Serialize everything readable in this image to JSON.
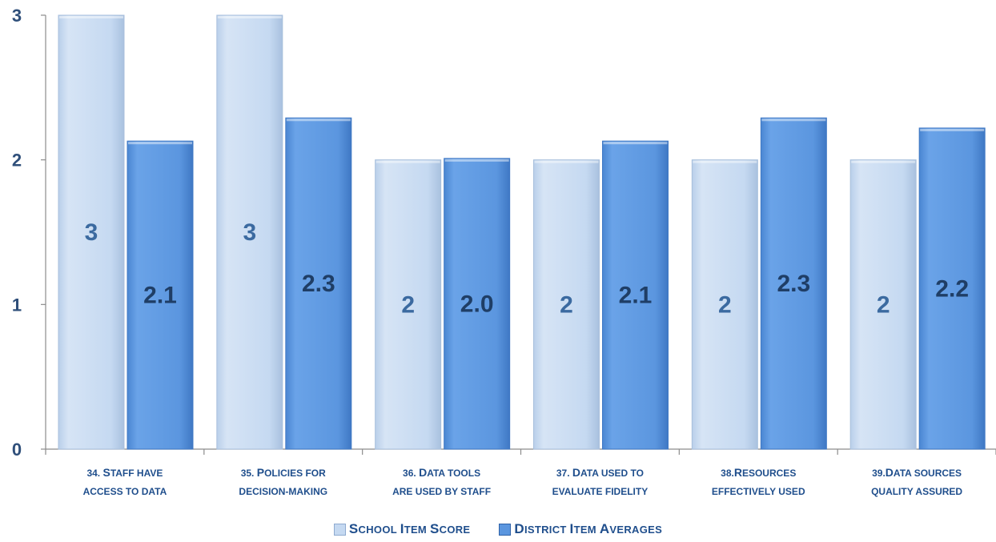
{
  "chart_data": {
    "type": "bar",
    "categories": [
      [
        "34. Staff have",
        "access to data"
      ],
      [
        "35. Policies for",
        "decision-making"
      ],
      [
        "36. Data tools",
        "are used by staff"
      ],
      [
        "37. Data  used to",
        "evaluate fidelity"
      ],
      [
        "38.Resources",
        "effectively used"
      ],
      [
        "39.Data sources",
        "quality assured"
      ]
    ],
    "series": [
      {
        "name": "School Item Score",
        "values": [
          3,
          3,
          2,
          2,
          2,
          2
        ],
        "labels": [
          "3",
          "3",
          "2",
          "2",
          "2",
          "2"
        ],
        "color": "#c5d9f1",
        "edge": "#a8bfdc",
        "label_color": "#3b6aa0"
      },
      {
        "name": "District Item Averages",
        "values": [
          2.13,
          2.29,
          2.01,
          2.13,
          2.29,
          2.22
        ],
        "labels": [
          "2.1",
          "2.3",
          "2.0",
          "2.1",
          "2.3",
          "2.2"
        ],
        "color": "#5b96df",
        "edge": "#3f78c4",
        "label_color": "#1f3e66"
      }
    ],
    "yticks": [
      "0",
      "1",
      "2",
      "3"
    ],
    "ylim": [
      0,
      3
    ],
    "legend_position": "bottom",
    "grid": false
  }
}
